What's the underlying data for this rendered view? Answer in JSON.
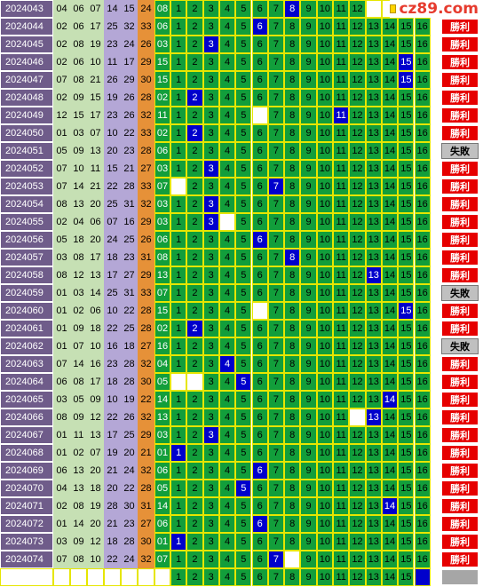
{
  "logo": {
    "text": "cz89.com"
  },
  "colors": {
    "issue_bg": "#6f5c8a",
    "band": [
      "#c6e0b4",
      "#c6e0b4",
      "#c6e0b4",
      "#b4a7d6",
      "#b4a7d6",
      "#e69138"
    ],
    "green": "#129e3b",
    "hit": "#0000cc",
    "win": "#e60000",
    "lose": "#c0c0c0"
  },
  "results": {
    "win": "勝利",
    "lose": "失敗"
  },
  "rows": [
    {
      "issue": "2024043",
      "nums": [
        "04",
        "06",
        "07",
        "14",
        "15",
        "24"
      ],
      "special": "08",
      "hit": 8,
      "blanks": [],
      "result": ""
    },
    {
      "issue": "2024044",
      "nums": [
        "02",
        "06",
        "17",
        "25",
        "32",
        "33"
      ],
      "special": "06",
      "hit": 6,
      "blanks": [],
      "result": "win"
    },
    {
      "issue": "2024045",
      "nums": [
        "02",
        "08",
        "19",
        "23",
        "24",
        "26"
      ],
      "special": "03",
      "hit": 3,
      "blanks": [],
      "result": "win"
    },
    {
      "issue": "2024046",
      "nums": [
        "02",
        "06",
        "10",
        "11",
        "17",
        "29"
      ],
      "special": "15",
      "hit": 15,
      "blanks": [],
      "result": "win"
    },
    {
      "issue": "2024047",
      "nums": [
        "07",
        "08",
        "21",
        "26",
        "29",
        "30"
      ],
      "special": "15",
      "hit": 15,
      "blanks": [],
      "result": "win"
    },
    {
      "issue": "2024048",
      "nums": [
        "02",
        "09",
        "15",
        "19",
        "26",
        "28"
      ],
      "special": "02",
      "hit": 2,
      "blanks": [],
      "result": "win"
    },
    {
      "issue": "2024049",
      "nums": [
        "12",
        "15",
        "17",
        "23",
        "26",
        "32"
      ],
      "special": "11",
      "hit": 11,
      "blanks": [
        6
      ],
      "result": "win"
    },
    {
      "issue": "2024050",
      "nums": [
        "01",
        "03",
        "07",
        "10",
        "22",
        "33"
      ],
      "special": "02",
      "hit": 2,
      "blanks": [],
      "result": "win"
    },
    {
      "issue": "2024051",
      "nums": [
        "05",
        "09",
        "13",
        "20",
        "23",
        "28"
      ],
      "special": "06",
      "hit": 0,
      "blanks": [],
      "result": "lose"
    },
    {
      "issue": "2024052",
      "nums": [
        "07",
        "10",
        "11",
        "15",
        "21",
        "27"
      ],
      "special": "03",
      "hit": 3,
      "blanks": [],
      "result": "win"
    },
    {
      "issue": "2024053",
      "nums": [
        "07",
        "14",
        "21",
        "22",
        "28",
        "33"
      ],
      "special": "07",
      "hit": 7,
      "blanks": [
        1
      ],
      "result": "win"
    },
    {
      "issue": "2024054",
      "nums": [
        "08",
        "13",
        "20",
        "25",
        "31",
        "32"
      ],
      "special": "03",
      "hit": 3,
      "blanks": [],
      "result": "win"
    },
    {
      "issue": "2024055",
      "nums": [
        "02",
        "04",
        "06",
        "07",
        "16",
        "29"
      ],
      "special": "03",
      "hit": 3,
      "blanks": [
        4
      ],
      "result": "win"
    },
    {
      "issue": "2024056",
      "nums": [
        "05",
        "18",
        "20",
        "24",
        "25",
        "26"
      ],
      "special": "06",
      "hit": 6,
      "blanks": [],
      "result": "win"
    },
    {
      "issue": "2024057",
      "nums": [
        "03",
        "08",
        "17",
        "18",
        "23",
        "31"
      ],
      "special": "08",
      "hit": 8,
      "blanks": [],
      "result": "win"
    },
    {
      "issue": "2024058",
      "nums": [
        "08",
        "12",
        "13",
        "17",
        "27",
        "29"
      ],
      "special": "13",
      "hit": 13,
      "blanks": [],
      "result": "win"
    },
    {
      "issue": "2024059",
      "nums": [
        "01",
        "03",
        "14",
        "25",
        "31",
        "33"
      ],
      "special": "07",
      "hit": 0,
      "blanks": [],
      "result": "lose"
    },
    {
      "issue": "2024060",
      "nums": [
        "01",
        "02",
        "06",
        "10",
        "22",
        "28"
      ],
      "special": "15",
      "hit": 15,
      "blanks": [
        6
      ],
      "result": "win"
    },
    {
      "issue": "2024061",
      "nums": [
        "01",
        "09",
        "18",
        "22",
        "25",
        "28"
      ],
      "special": "02",
      "hit": 2,
      "blanks": [],
      "result": "win"
    },
    {
      "issue": "2024062",
      "nums": [
        "01",
        "07",
        "10",
        "16",
        "18",
        "27"
      ],
      "special": "16",
      "hit": 0,
      "blanks": [],
      "result": "lose"
    },
    {
      "issue": "2024063",
      "nums": [
        "07",
        "14",
        "16",
        "23",
        "28",
        "32"
      ],
      "special": "04",
      "hit": 4,
      "blanks": [],
      "result": "win"
    },
    {
      "issue": "2024064",
      "nums": [
        "06",
        "08",
        "17",
        "18",
        "28",
        "30"
      ],
      "special": "05",
      "hit": 5,
      "blanks": [
        1,
        2
      ],
      "result": "win"
    },
    {
      "issue": "2024065",
      "nums": [
        "03",
        "05",
        "09",
        "10",
        "19",
        "22"
      ],
      "special": "14",
      "hit": 14,
      "blanks": [],
      "result": "win"
    },
    {
      "issue": "2024066",
      "nums": [
        "08",
        "09",
        "12",
        "22",
        "26",
        "32"
      ],
      "special": "13",
      "hit": 13,
      "blanks": [
        12
      ],
      "result": "win"
    },
    {
      "issue": "2024067",
      "nums": [
        "01",
        "11",
        "13",
        "17",
        "25",
        "29"
      ],
      "special": "03",
      "hit": 3,
      "blanks": [],
      "result": "win"
    },
    {
      "issue": "2024068",
      "nums": [
        "01",
        "02",
        "07",
        "19",
        "20",
        "21"
      ],
      "special": "01",
      "hit": 1,
      "blanks": [],
      "result": "win"
    },
    {
      "issue": "2024069",
      "nums": [
        "06",
        "13",
        "20",
        "21",
        "24",
        "32"
      ],
      "special": "06",
      "hit": 6,
      "blanks": [],
      "result": "win"
    },
    {
      "issue": "2024070",
      "nums": [
        "04",
        "13",
        "18",
        "20",
        "22",
        "28"
      ],
      "special": "05",
      "hit": 5,
      "blanks": [],
      "result": "win"
    },
    {
      "issue": "2024071",
      "nums": [
        "02",
        "08",
        "19",
        "28",
        "30",
        "31"
      ],
      "special": "14",
      "hit": 14,
      "blanks": [],
      "result": "win"
    },
    {
      "issue": "2024072",
      "nums": [
        "01",
        "14",
        "20",
        "21",
        "23",
        "27"
      ],
      "special": "06",
      "hit": 6,
      "blanks": [],
      "result": "win"
    },
    {
      "issue": "2024073",
      "nums": [
        "03",
        "09",
        "12",
        "18",
        "28",
        "30"
      ],
      "special": "01",
      "hit": 1,
      "blanks": [],
      "result": "win"
    },
    {
      "issue": "2024074",
      "nums": [
        "07",
        "08",
        "10",
        "22",
        "24",
        "32"
      ],
      "special": "07",
      "hit": 7,
      "blanks": [
        8
      ],
      "result": "win"
    },
    {
      "issue": "",
      "nums": [
        "",
        "",
        "",
        "",
        "",
        ""
      ],
      "special": "",
      "hit": 16,
      "blanks": [],
      "result": "pending"
    }
  ]
}
